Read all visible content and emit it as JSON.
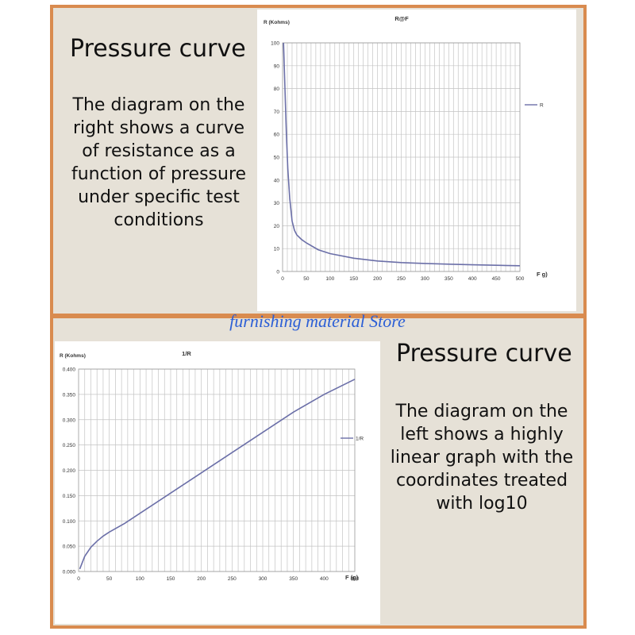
{
  "top_panel": {
    "heading": "Pressure curve",
    "desc_lines": [
      "The diagram on the",
      "right shows a curve",
      "of resistance as a",
      "function of pressure",
      "under specific test",
      "conditions"
    ]
  },
  "bottom_panel": {
    "heading": "Pressure curve",
    "desc_lines": [
      "The diagram on the",
      "left shows a highly",
      "linear graph with the",
      "coordinates treated",
      "with log10"
    ]
  },
  "watermark": "furnishing material Store",
  "colors": {
    "border": "#d98b4f",
    "panel_bg": "#e6e1d7",
    "curve": "#6b6fa8",
    "grid": "#c4c4c4",
    "watermark": "#2c5fd6"
  },
  "chart_data": [
    {
      "type": "line",
      "title": "R@F",
      "ylabel": "R (Kohms)",
      "xlabel": "F g)",
      "xlim": [
        0,
        500
      ],
      "ylim": [
        0,
        100
      ],
      "x_ticks": [
        "0",
        "50",
        "100",
        "150",
        "200",
        "250",
        "300",
        "350",
        "400",
        "450",
        "500"
      ],
      "y_ticks": [
        "0",
        "10",
        "20",
        "30",
        "40",
        "50",
        "60",
        "70",
        "80",
        "90",
        "100"
      ],
      "grid": true,
      "legend_position": "right",
      "series": [
        {
          "name": "R",
          "x": [
            2,
            5,
            8,
            11,
            15,
            20,
            25,
            30,
            40,
            50,
            75,
            100,
            150,
            200,
            250,
            300,
            350,
            400,
            450,
            500
          ],
          "y": [
            100,
            80,
            60,
            45,
            32,
            22,
            18,
            16,
            14,
            12.5,
            9.5,
            7.8,
            5.8,
            4.6,
            3.9,
            3.5,
            3.2,
            2.9,
            2.7,
            2.5
          ]
        }
      ]
    },
    {
      "type": "line",
      "title": "1/R",
      "ylabel": "R (Kohms)",
      "xlabel": "F (g)",
      "xlim": [
        0,
        450
      ],
      "ylim": [
        0,
        0.4
      ],
      "x_ticks": [
        "0",
        "50",
        "100",
        "150",
        "200",
        "250",
        "300",
        "350",
        "400",
        "450"
      ],
      "y_ticks": [
        "0.000",
        "0.050",
        "0.100",
        "0.150",
        "0.200",
        "0.250",
        "0.300",
        "0.350",
        "0.400"
      ],
      "grid": true,
      "legend_position": "right",
      "series": [
        {
          "name": "1/R",
          "x": [
            2,
            10,
            20,
            30,
            40,
            50,
            75,
            100,
            150,
            200,
            250,
            300,
            350,
            400,
            450
          ],
          "y": [
            0.005,
            0.03,
            0.048,
            0.06,
            0.07,
            0.078,
            0.095,
            0.115,
            0.155,
            0.195,
            0.235,
            0.275,
            0.315,
            0.35,
            0.38
          ]
        }
      ]
    }
  ]
}
